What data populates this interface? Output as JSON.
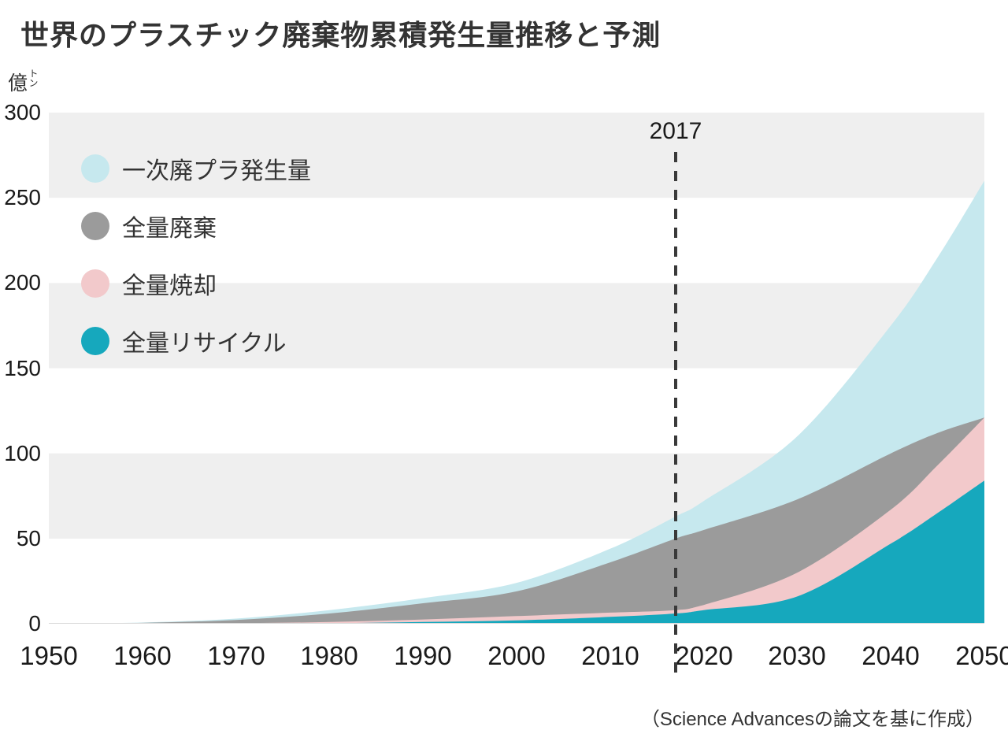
{
  "title": "世界のプラスチック廃棄物累積発生量推移と予測",
  "y_unit": {
    "main": "億",
    "small": "トン"
  },
  "source": "（Science Advancesの論文を基に作成）",
  "annotation": {
    "year": 2017,
    "label": "2017"
  },
  "colors": {
    "band": "#efefef",
    "baseline": "#d8d8d8",
    "dash": "#3a3a3a",
    "text": "#333333"
  },
  "chart_data": {
    "type": "area",
    "title": "世界のプラスチック廃棄物累積発生量推移と予測",
    "ylabel": "億トン",
    "xlim": [
      1950,
      2050
    ],
    "ylim": [
      0,
      300
    ],
    "grid": "horizontal-bands",
    "legend_position": "top-left-inside",
    "x": [
      1950,
      1960,
      1970,
      1980,
      1990,
      2000,
      2010,
      2017,
      2020,
      2030,
      2040,
      2045,
      2050
    ],
    "x_ticks": [
      "1950",
      "1960",
      "1970",
      "1980",
      "1990",
      "2000",
      "2010",
      "2020",
      "2030",
      "2040",
      "2050"
    ],
    "y_ticks": [
      "0",
      "50",
      "100",
      "150",
      "200",
      "250",
      "300"
    ],
    "annotation_line": {
      "x": 2017,
      "label": "2017"
    },
    "series": [
      {
        "name": "一次廃プラ発生量",
        "color": "#c6e8ee",
        "values": [
          0,
          0.7,
          3,
          8,
          15,
          24,
          44,
          63,
          72,
          110,
          175,
          215,
          260
        ]
      },
      {
        "name": "全量廃棄",
        "color": "#9b9b9b",
        "values": [
          0,
          0.5,
          2.2,
          6,
          12,
          19,
          36,
          50,
          55,
          73,
          100,
          112,
          121
        ]
      },
      {
        "name": "全量焼却",
        "color": "#f2c9cb",
        "values": [
          0,
          0.1,
          0.3,
          1,
          2.5,
          4.5,
          6.5,
          8,
          11,
          30,
          67,
          93,
          121
        ]
      },
      {
        "name": "全量リサイクル",
        "color": "#16a8bd",
        "values": [
          0,
          0,
          0.1,
          0.3,
          1,
          2,
          4,
          6,
          8,
          16,
          47,
          65,
          84
        ]
      }
    ]
  }
}
